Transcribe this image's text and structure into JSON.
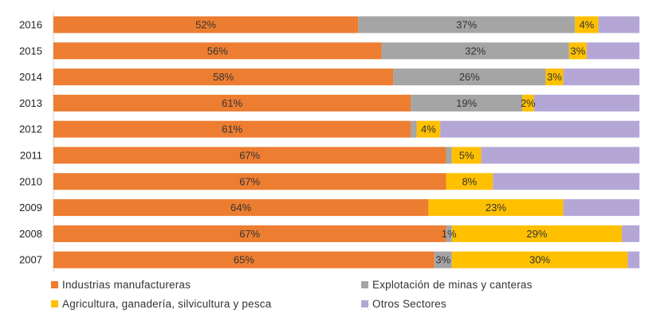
{
  "chart_data": {
    "type": "bar",
    "orientation": "horizontal",
    "stacked": "100%",
    "categories": [
      "2016",
      "2015",
      "2014",
      "2013",
      "2012",
      "2011",
      "2010",
      "2009",
      "2008",
      "2007"
    ],
    "series": [
      {
        "name": "Industrias manufactureras",
        "color": "#ED7D31",
        "values": [
          52,
          56,
          58,
          61,
          61,
          67,
          67,
          64,
          67,
          65
        ],
        "labels": [
          "52%",
          "56%",
          "58%",
          "61%",
          "61%",
          "67%",
          "67%",
          "64%",
          "67%",
          "65%"
        ]
      },
      {
        "name": "Explotación de minas y canteras",
        "color": "#A5A5A5",
        "values": [
          37,
          32,
          26,
          19,
          1,
          1,
          0,
          0,
          1,
          3
        ],
        "labels": [
          "37%",
          "32%",
          "26%",
          "19%",
          "",
          "",
          "",
          "",
          "1%",
          "3%"
        ]
      },
      {
        "name": "Agricultura, ganadería,  silvicultura y pesca",
        "color": "#FFC000",
        "values": [
          4,
          3,
          3,
          2,
          4,
          5,
          8,
          23,
          29,
          30
        ],
        "labels": [
          "4%",
          "3%",
          "3%",
          "2%",
          "4%",
          "5%",
          "8%",
          "23%",
          "29%",
          "30%"
        ]
      },
      {
        "name": "Otros Sectores",
        "color": "#B4A7D6",
        "values": [
          7,
          9,
          13,
          18,
          34,
          27,
          25,
          13,
          3,
          2
        ],
        "labels": [
          "",
          "",
          "",
          "",
          "",
          "",
          "",
          "",
          "",
          ""
        ]
      }
    ],
    "xlim": [
      0,
      100
    ],
    "grid": false,
    "legend_position": "bottom"
  }
}
